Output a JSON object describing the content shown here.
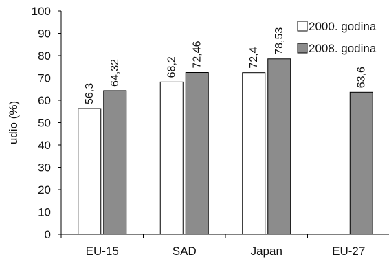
{
  "chart_data": {
    "type": "bar",
    "ylabel": "udio (%)",
    "xlabel": "",
    "ylim": [
      0,
      100
    ],
    "ytick_step": 10,
    "categories": [
      "EU-15",
      "SAD",
      "Japan",
      "EU-27"
    ],
    "series": [
      {
        "name": "2000. godina",
        "values": [
          56.3,
          68.2,
          72.4,
          null
        ],
        "labels": [
          "56,3",
          "68,2",
          "72,4",
          ""
        ],
        "color": "#ffffff"
      },
      {
        "name": "2008. godina",
        "values": [
          64.32,
          72.46,
          78.53,
          63.6
        ],
        "labels": [
          "64,32",
          "72,46",
          "78,53",
          "63,6"
        ],
        "color": "#8c8c8c"
      }
    ],
    "legend_position": "top-right",
    "grid": false
  }
}
